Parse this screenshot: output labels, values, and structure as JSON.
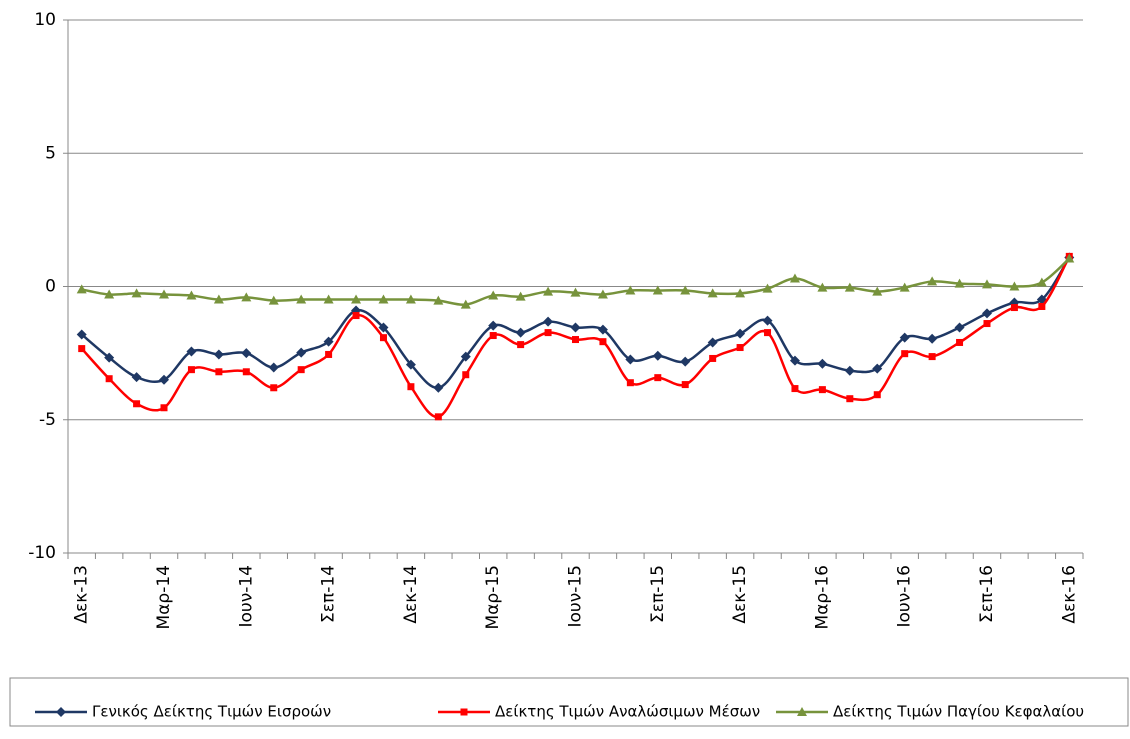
{
  "chart_data": {
    "type": "line",
    "categories": [
      "Δεκ-13",
      null,
      null,
      "Μαρ-14",
      null,
      null,
      "Ιουν-14",
      null,
      null,
      "Σεπ-14",
      null,
      null,
      "Δεκ-14",
      null,
      null,
      "Μαρ-15",
      null,
      null,
      "Ιουν-15",
      null,
      null,
      "Σεπ-15",
      null,
      null,
      "Δεκ-15",
      null,
      null,
      "Μαρ-16",
      null,
      null,
      "Ιουν-16",
      null,
      null,
      "Σεπ-16",
      null,
      null,
      "Δεκ-16"
    ],
    "series": [
      {
        "name": "Γενικός Δείκτης Τιμών Εισροών",
        "color": "#1f3864",
        "marker": "diamond",
        "values": [
          -1.8,
          -2.67,
          -3.4,
          -3.5,
          -2.44,
          -2.55,
          -2.5,
          -3.04,
          -2.48,
          -2.07,
          -0.9,
          -1.54,
          -2.93,
          -3.8,
          -2.63,
          -1.47,
          -1.73,
          -1.32,
          -1.54,
          -1.62,
          -2.74,
          -2.6,
          -2.82,
          -2.1,
          -1.77,
          -1.28,
          -2.78,
          -2.9,
          -3.16,
          -3.08,
          -1.92,
          -1.96,
          -1.54,
          -1.01,
          -0.6,
          -0.49,
          1.09
        ]
      },
      {
        "name": "Δείκτης Τιμών Αναλώσιμων Μέσων",
        "color": "#ff0000",
        "marker": "square",
        "values": [
          -2.33,
          -3.46,
          -4.4,
          -4.55,
          -3.12,
          -3.2,
          -3.2,
          -3.8,
          -3.12,
          -2.55,
          -1.09,
          -1.92,
          -3.76,
          -4.89,
          -3.31,
          -1.84,
          -2.18,
          -1.73,
          -1.99,
          -2.07,
          -3.61,
          -3.42,
          -3.68,
          -2.7,
          -2.29,
          -1.73,
          -3.83,
          -3.87,
          -4.21,
          -4.06,
          -2.52,
          -2.63,
          -2.1,
          -1.39,
          -0.79,
          -0.75,
          1.13
        ]
      },
      {
        "name": "Δείκτης Τιμών Παγίου Κεφαλαίου",
        "color": "#77933c",
        "marker": "triangle",
        "values": [
          -0.11,
          -0.3,
          -0.26,
          -0.3,
          -0.34,
          -0.49,
          -0.41,
          -0.53,
          -0.49,
          -0.49,
          -0.49,
          -0.49,
          -0.49,
          -0.53,
          -0.68,
          -0.34,
          -0.38,
          -0.19,
          -0.23,
          -0.3,
          -0.15,
          -0.15,
          -0.15,
          -0.26,
          -0.26,
          -0.08,
          0.3,
          -0.04,
          -0.04,
          -0.19,
          -0.04,
          0.19,
          0.11,
          0.08,
          0,
          0.15,
          1.05
        ]
      }
    ],
    "ylim": [
      -10,
      10
    ],
    "yticks": [
      -10,
      -5,
      0,
      5,
      10
    ],
    "grid": true,
    "smooth": true,
    "legend": "bottom"
  }
}
